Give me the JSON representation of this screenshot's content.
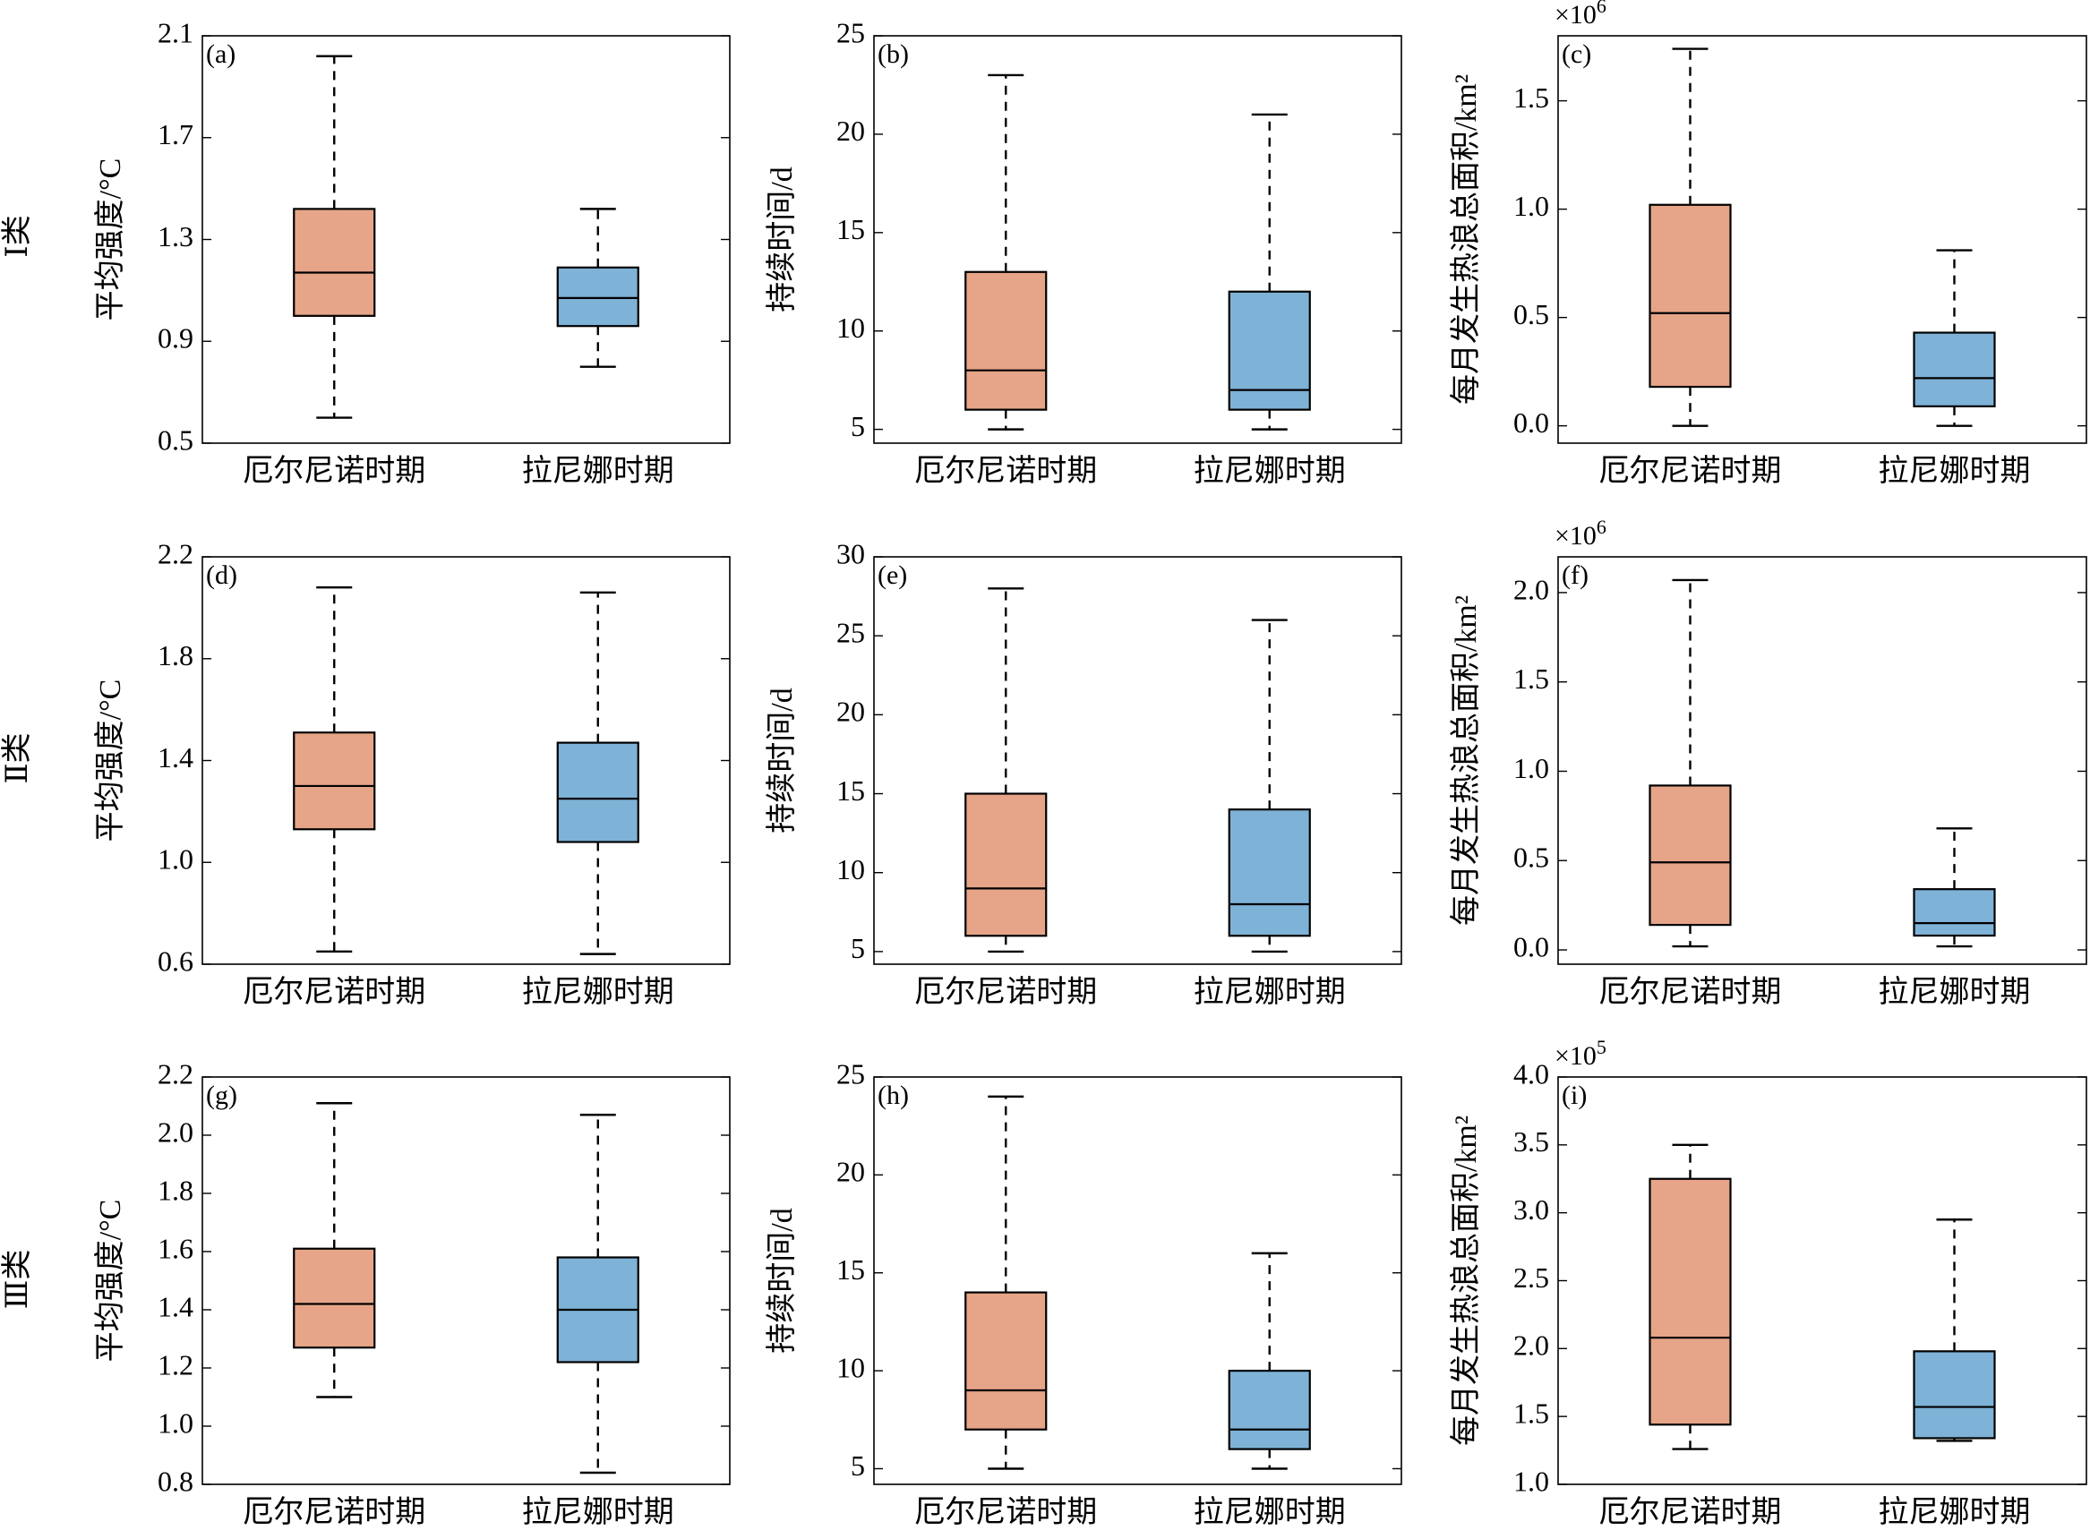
{
  "colors": {
    "el_nino": "#E6A488",
    "la_nina": "#7EB2D6",
    "median": "#000000",
    "axis": "#000000"
  },
  "categories": [
    "厄尔尼诺时期",
    "拉尼娜时期"
  ],
  "rows": [
    {
      "label": "Ⅰ类"
    },
    {
      "label": "Ⅱ类"
    },
    {
      "label": "Ⅲ类"
    }
  ],
  "chart_data": [
    {
      "type": "box",
      "panel": "(a)",
      "ylabel": "平均强度/°C",
      "ylim": [
        0.5,
        2.1
      ],
      "yticks": [
        0.5,
        0.9,
        1.3,
        1.7,
        2.1
      ],
      "ytick_labels": [
        "0.5",
        "0.9",
        "1.3",
        "1.7",
        "2.1"
      ],
      "categories": [
        "厄尔尼诺时期",
        "拉尼娜时期"
      ],
      "boxes": [
        {
          "whisker_low": 0.6,
          "q1": 1.0,
          "median": 1.17,
          "q3": 1.42,
          "whisker_high": 2.02
        },
        {
          "whisker_low": 0.8,
          "q1": 0.96,
          "median": 1.07,
          "q3": 1.19,
          "whisker_high": 1.42
        }
      ]
    },
    {
      "type": "box",
      "panel": "(b)",
      "ylabel": "持续时间/d",
      "ylim": [
        4.3,
        25
      ],
      "yticks": [
        5,
        10,
        15,
        20,
        25
      ],
      "ytick_labels": [
        "5",
        "10",
        "15",
        "20",
        "25"
      ],
      "categories": [
        "厄尔尼诺时期",
        "拉尼娜时期"
      ],
      "boxes": [
        {
          "whisker_low": 5,
          "q1": 6,
          "median": 8,
          "q3": 13,
          "whisker_high": 23
        },
        {
          "whisker_low": 5,
          "q1": 6,
          "median": 7,
          "q3": 12,
          "whisker_high": 21
        }
      ]
    },
    {
      "type": "box",
      "panel": "(c)",
      "ylabel": "每月发生热浪总面积/km²",
      "ylim": [
        -0.08,
        1.8
      ],
      "yticks": [
        0.0,
        0.5,
        1.0,
        1.5
      ],
      "ytick_labels": [
        "0.0",
        "0.5",
        "1.0",
        "1.5"
      ],
      "exponent_base": "×10",
      "exponent": "6",
      "categories": [
        "厄尔尼诺时期",
        "拉尼娜时期"
      ],
      "boxes": [
        {
          "whisker_low": 0.0,
          "q1": 0.18,
          "median": 0.52,
          "q3": 1.02,
          "whisker_high": 1.74
        },
        {
          "whisker_low": 0.0,
          "q1": 0.09,
          "median": 0.22,
          "q3": 0.43,
          "whisker_high": 0.81
        }
      ]
    },
    {
      "type": "box",
      "panel": "(d)",
      "ylabel": "平均强度/°C",
      "ylim": [
        0.6,
        2.2
      ],
      "yticks": [
        0.6,
        1.0,
        1.4,
        1.8,
        2.2
      ],
      "ytick_labels": [
        "0.6",
        "1.0",
        "1.4",
        "1.8",
        "2.2"
      ],
      "categories": [
        "厄尔尼诺时期",
        "拉尼娜时期"
      ],
      "boxes": [
        {
          "whisker_low": 0.65,
          "q1": 1.13,
          "median": 1.3,
          "q3": 1.51,
          "whisker_high": 2.08
        },
        {
          "whisker_low": 0.64,
          "q1": 1.08,
          "median": 1.25,
          "q3": 1.47,
          "whisker_high": 2.06
        }
      ]
    },
    {
      "type": "box",
      "panel": "(e)",
      "ylabel": "持续时间/d",
      "ylim": [
        4.2,
        30
      ],
      "yticks": [
        5,
        10,
        15,
        20,
        25,
        30
      ],
      "ytick_labels": [
        "5",
        "10",
        "15",
        "20",
        "25",
        "30"
      ],
      "categories": [
        "厄尔尼诺时期",
        "拉尼娜时期"
      ],
      "boxes": [
        {
          "whisker_low": 5,
          "q1": 6,
          "median": 9,
          "q3": 15,
          "whisker_high": 28
        },
        {
          "whisker_low": 5,
          "q1": 6,
          "median": 8,
          "q3": 14,
          "whisker_high": 26
        }
      ]
    },
    {
      "type": "box",
      "panel": "(f)",
      "ylabel": "每月发生热浪总面积/km²",
      "ylim": [
        -0.08,
        2.2
      ],
      "yticks": [
        0.0,
        0.5,
        1.0,
        1.5,
        2.0
      ],
      "ytick_labels": [
        "0.0",
        "0.5",
        "1.0",
        "1.5",
        "2.0"
      ],
      "exponent_base": "×10",
      "exponent": "6",
      "categories": [
        "厄尔尼诺时期",
        "拉尼娜时期"
      ],
      "boxes": [
        {
          "whisker_low": 0.02,
          "q1": 0.14,
          "median": 0.49,
          "q3": 0.92,
          "whisker_high": 2.07
        },
        {
          "whisker_low": 0.02,
          "q1": 0.08,
          "median": 0.15,
          "q3": 0.34,
          "whisker_high": 0.68
        }
      ]
    },
    {
      "type": "box",
      "panel": "(g)",
      "ylabel": "平均强度/°C",
      "ylim": [
        0.8,
        2.2
      ],
      "yticks": [
        0.8,
        1.0,
        1.2,
        1.4,
        1.6,
        1.8,
        2.0,
        2.2
      ],
      "ytick_labels": [
        "0.8",
        "1.0",
        "1.2",
        "1.4",
        "1.6",
        "1.8",
        "2.0",
        "2.2"
      ],
      "categories": [
        "厄尔尼诺时期",
        "拉尼娜时期"
      ],
      "boxes": [
        {
          "whisker_low": 1.1,
          "q1": 1.27,
          "median": 1.42,
          "q3": 1.61,
          "whisker_high": 2.11
        },
        {
          "whisker_low": 0.84,
          "q1": 1.22,
          "median": 1.4,
          "q3": 1.58,
          "whisker_high": 2.07
        }
      ]
    },
    {
      "type": "box",
      "panel": "(h)",
      "ylabel": "持续时间/d",
      "ylim": [
        4.2,
        25
      ],
      "yticks": [
        5,
        10,
        15,
        20,
        25
      ],
      "ytick_labels": [
        "5",
        "10",
        "15",
        "20",
        "25"
      ],
      "categories": [
        "厄尔尼诺时期",
        "拉尼娜时期"
      ],
      "boxes": [
        {
          "whisker_low": 5,
          "q1": 7,
          "median": 9,
          "q3": 14,
          "whisker_high": 24
        },
        {
          "whisker_low": 5,
          "q1": 6,
          "median": 7,
          "q3": 10,
          "whisker_high": 16
        }
      ]
    },
    {
      "type": "box",
      "panel": "(i)",
      "ylabel": "每月发生热浪总面积/km²",
      "ylim": [
        1.0,
        4.0
      ],
      "yticks": [
        1.0,
        1.5,
        2.0,
        2.5,
        3.0,
        3.5,
        4.0
      ],
      "ytick_labels": [
        "1.0",
        "1.5",
        "2.0",
        "2.5",
        "3.0",
        "3.5",
        "4.0"
      ],
      "exponent_base": "×10",
      "exponent": "5",
      "categories": [
        "厄尔尼诺时期",
        "拉尼娜时期"
      ],
      "boxes": [
        {
          "whisker_low": 1.26,
          "q1": 1.44,
          "median": 2.08,
          "q3": 3.25,
          "whisker_high": 3.5
        },
        {
          "whisker_low": 1.32,
          "q1": 1.34,
          "median": 1.57,
          "q3": 1.98,
          "whisker_high": 2.95
        }
      ]
    }
  ]
}
